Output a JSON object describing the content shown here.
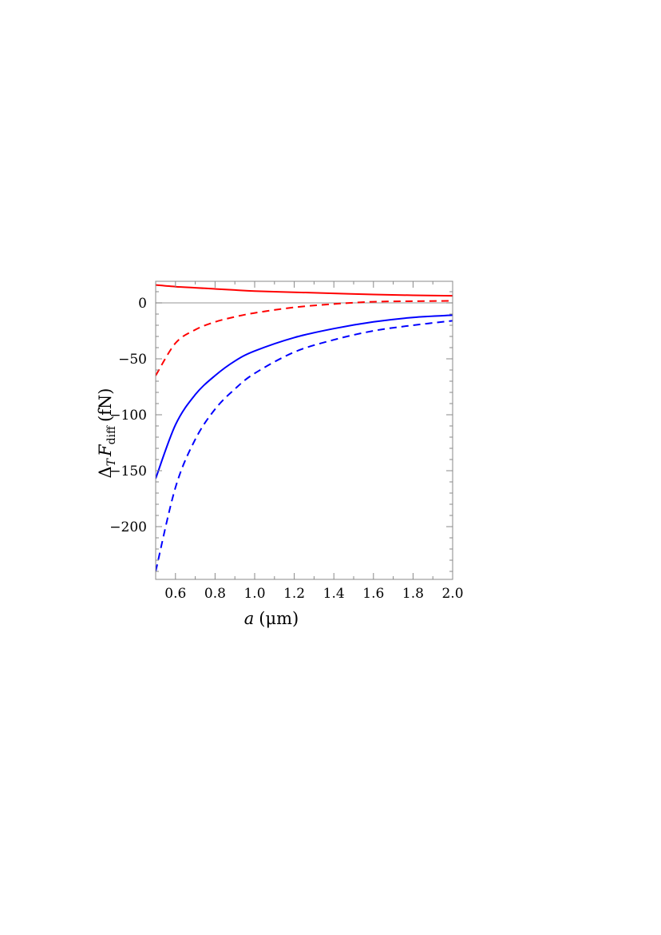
{
  "chart_data": {
    "type": "line",
    "xlabel": {
      "var": "a",
      "unit": "(μm)"
    },
    "ylabel": {
      "delta": "Δ",
      "sub1": "T",
      "var": "F",
      "sub2": "diff",
      "unit": "(fN)"
    },
    "xlim": [
      0.5,
      2.0
    ],
    "ylim": [
      -250,
      20
    ],
    "x_ticks": [
      0.6,
      0.8,
      1.0,
      1.2,
      1.4,
      1.6,
      1.8,
      2.0
    ],
    "x_tick_labels": [
      "0.6",
      "0.8",
      "1.0",
      "1.2",
      "1.4",
      "1.6",
      "1.8",
      "2.0"
    ],
    "y_ticks": [
      0,
      -50,
      -100,
      -150,
      -200
    ],
    "y_tick_labels": [
      "0",
      "−50",
      "−100",
      "−150",
      "−200"
    ],
    "zero_line": true,
    "grid": false,
    "x": [
      0.5,
      0.6,
      0.7,
      0.8,
      0.9,
      1.0,
      1.2,
      1.4,
      1.6,
      1.8,
      2.0
    ],
    "series": [
      {
        "color": "#ff0000",
        "dash": "solid",
        "values": [
          16,
          14.5,
          13.5,
          12.5,
          11.5,
          10.5,
          9.5,
          8.5,
          7.5,
          6.8,
          6.3
        ]
      },
      {
        "color": "#ff0000",
        "dash": "dashed",
        "values": [
          -65,
          -36,
          -24,
          -17,
          -12.5,
          -9,
          -4,
          -1,
          1,
          1.5,
          1.8
        ]
      },
      {
        "color": "#0000ff",
        "dash": "solid",
        "values": [
          -157,
          -109,
          -82,
          -65,
          -52,
          -43,
          -31,
          -23,
          -17,
          -13,
          -11
        ]
      },
      {
        "color": "#0000ff",
        "dash": "dashed",
        "values": [
          -240,
          -165,
          -122,
          -95,
          -77,
          -63,
          -44,
          -33,
          -25,
          -20,
          -16
        ]
      }
    ]
  }
}
